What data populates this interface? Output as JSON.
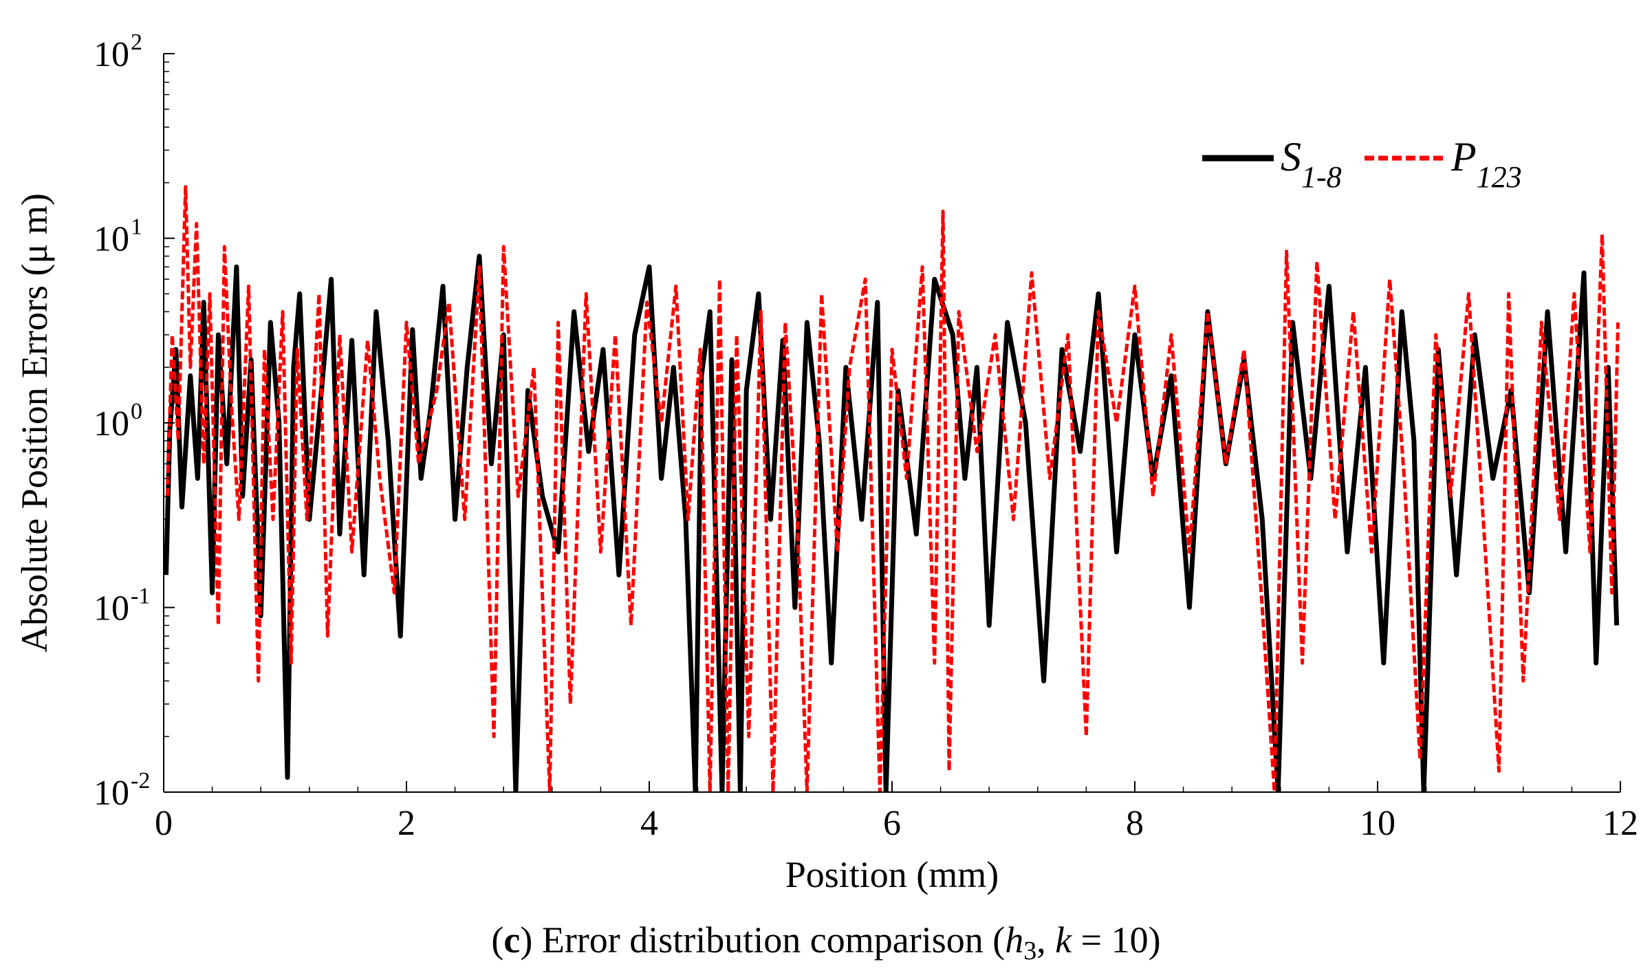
{
  "chart_data": {
    "type": "line",
    "x_label": "Position (mm)",
    "y_label": "Absolute Position Errors (μ m)",
    "y_scale": "log",
    "xlim": [
      0,
      12
    ],
    "ylim": [
      0.01,
      100
    ],
    "x_ticks": [
      "0",
      "2",
      "4",
      "6",
      "8",
      "10",
      "12"
    ],
    "x_tick_values": [
      0,
      2,
      4,
      6,
      8,
      10,
      12
    ],
    "y_ticks": [
      {
        "value": 0.01,
        "base": "10",
        "exp": "-2"
      },
      {
        "value": 0.1,
        "base": "10",
        "exp": "-1"
      },
      {
        "value": 1,
        "base": "10",
        "exp": "0"
      },
      {
        "value": 10,
        "base": "10",
        "exp": "1"
      },
      {
        "value": 100,
        "base": "10",
        "exp": "2"
      }
    ],
    "grid": false,
    "legend_position": "top-right",
    "legend": [
      {
        "name": "S",
        "subscript": "1-8",
        "color": "#000000",
        "style": "solid"
      },
      {
        "name": "P",
        "subscript": "123",
        "color": "#ff0000",
        "style": "dashed"
      }
    ],
    "series": [
      {
        "name": "S1-8",
        "color": "#000000",
        "x": [
          0.02,
          0.05,
          0.1,
          0.15,
          0.22,
          0.28,
          0.33,
          0.4,
          0.45,
          0.52,
          0.6,
          0.65,
          0.72,
          0.8,
          0.88,
          0.95,
          1.02,
          1.07,
          1.12,
          1.2,
          1.3,
          1.38,
          1.45,
          1.55,
          1.65,
          1.75,
          1.85,
          1.95,
          2.05,
          2.12,
          2.2,
          2.3,
          2.4,
          2.5,
          2.6,
          2.7,
          2.8,
          2.9,
          3.0,
          3.12,
          3.25,
          3.38,
          3.5,
          3.62,
          3.75,
          3.88,
          4.0,
          4.1,
          4.2,
          4.3,
          4.38,
          4.43,
          4.5,
          4.6,
          4.68,
          4.75,
          4.8,
          4.9,
          5.0,
          5.1,
          5.2,
          5.3,
          5.4,
          5.5,
          5.62,
          5.75,
          5.88,
          5.95,
          6.05,
          6.2,
          6.35,
          6.5,
          6.6,
          6.7,
          6.8,
          6.95,
          7.1,
          7.25,
          7.4,
          7.55,
          7.7,
          7.85,
          8.0,
          8.15,
          8.3,
          8.45,
          8.6,
          8.75,
          8.9,
          9.05,
          9.18,
          9.3,
          9.45,
          9.6,
          9.75,
          9.9,
          10.05,
          10.2,
          10.3,
          10.38,
          10.5,
          10.65,
          10.8,
          10.95,
          11.1,
          11.25,
          11.4,
          11.55,
          11.7,
          11.8,
          11.9,
          11.97
        ],
        "values": [
          0.15,
          0.9,
          2.5,
          0.35,
          1.8,
          0.5,
          4.5,
          0.12,
          3.0,
          0.6,
          7.0,
          0.4,
          2.2,
          0.09,
          3.5,
          1.0,
          0.012,
          2.0,
          5.0,
          0.3,
          1.5,
          6.0,
          0.25,
          2.8,
          0.15,
          4.0,
          0.8,
          0.07,
          3.2,
          0.5,
          1.2,
          5.5,
          0.3,
          2.0,
          8.0,
          0.6,
          3.0,
          0.01,
          1.5,
          0.4,
          0.2,
          4.0,
          0.7,
          2.5,
          0.15,
          3.0,
          7.0,
          0.5,
          2.0,
          0.3,
          0.01,
          1.8,
          4.0,
          0.01,
          2.2,
          0.01,
          1.5,
          5.0,
          0.3,
          2.8,
          0.1,
          3.5,
          0.8,
          0.05,
          2.0,
          0.3,
          4.5,
          0.01,
          1.5,
          0.25,
          6.0,
          3.0,
          0.5,
          2.0,
          0.08,
          3.5,
          1.0,
          0.04,
          2.5,
          0.7,
          5.0,
          0.2,
          3.0,
          0.5,
          1.8,
          0.1,
          4.0,
          0.6,
          2.2,
          0.3,
          0.01,
          3.5,
          0.5,
          5.5,
          0.2,
          2.0,
          0.05,
          4.0,
          0.8,
          0.01,
          2.5,
          0.15,
          3.0,
          0.5,
          1.5,
          0.12,
          4.0,
          0.2,
          6.5,
          0.05,
          2.0,
          0.08
        ]
      },
      {
        "name": "P123",
        "color": "#ff0000",
        "x": [
          0.03,
          0.07,
          0.12,
          0.18,
          0.22,
          0.27,
          0.33,
          0.38,
          0.45,
          0.5,
          0.56,
          0.62,
          0.7,
          0.78,
          0.83,
          0.9,
          0.98,
          1.05,
          1.1,
          1.18,
          1.28,
          1.35,
          1.45,
          1.55,
          1.68,
          1.78,
          1.9,
          2.0,
          2.1,
          2.25,
          2.35,
          2.48,
          2.6,
          2.72,
          2.8,
          2.92,
          3.05,
          3.18,
          3.25,
          3.35,
          3.48,
          3.6,
          3.72,
          3.85,
          3.98,
          4.1,
          4.22,
          4.32,
          4.42,
          4.5,
          4.58,
          4.65,
          4.72,
          4.82,
          4.92,
          5.02,
          5.12,
          5.22,
          5.3,
          5.42,
          5.55,
          5.65,
          5.78,
          5.9,
          6.0,
          6.12,
          6.25,
          6.35,
          6.42,
          6.47,
          6.55,
          6.7,
          6.85,
          7.0,
          7.15,
          7.3,
          7.45,
          7.6,
          7.7,
          7.85,
          8.0,
          8.15,
          8.3,
          8.45,
          8.6,
          8.75,
          8.9,
          9.05,
          9.15,
          9.25,
          9.38,
          9.5,
          9.65,
          9.8,
          9.95,
          10.1,
          10.22,
          10.35,
          10.48,
          10.6,
          10.75,
          10.9,
          11.0,
          11.08,
          11.2,
          11.35,
          11.5,
          11.62,
          11.75,
          11.85,
          11.93,
          11.98
        ],
        "values": [
          0.4,
          3.0,
          0.8,
          19.0,
          2.0,
          12.0,
          0.6,
          5.0,
          0.08,
          9.0,
          1.2,
          0.3,
          5.5,
          0.04,
          2.5,
          0.3,
          4.0,
          0.05,
          2.5,
          0.3,
          5.0,
          0.07,
          3.0,
          0.2,
          2.8,
          0.5,
          0.12,
          3.5,
          0.6,
          1.5,
          4.5,
          0.3,
          7.0,
          0.02,
          9.0,
          0.4,
          2.0,
          0.01,
          3.5,
          0.03,
          5.0,
          0.2,
          3.0,
          0.08,
          4.5,
          1.0,
          5.5,
          0.3,
          2.5,
          0.01,
          6.0,
          0.01,
          3.0,
          0.02,
          4.0,
          0.01,
          3.5,
          0.3,
          0.01,
          5.0,
          0.2,
          2.0,
          6.0,
          0.01,
          2.5,
          0.5,
          7.0,
          0.05,
          14.0,
          0.013,
          4.0,
          0.7,
          3.0,
          0.3,
          6.5,
          0.5,
          3.0,
          0.02,
          4.0,
          1.0,
          5.5,
          0.4,
          3.0,
          0.2,
          4.0,
          0.6,
          2.5,
          0.1,
          0.01,
          8.5,
          0.05,
          7.5,
          0.3,
          4.0,
          0.2,
          6.0,
          0.5,
          0.015,
          3.0,
          0.4,
          5.0,
          0.15,
          0.013,
          5.0,
          0.04,
          3.5,
          0.3,
          5.0,
          0.2,
          10.5,
          0.12,
          3.5
        ]
      }
    ]
  },
  "caption": {
    "letter": "c",
    "text_1": " Error distribution comparison (",
    "h": "h",
    "h_sub": "3",
    "text_2": ", ",
    "k": "k",
    "text_3": " = 10)"
  }
}
